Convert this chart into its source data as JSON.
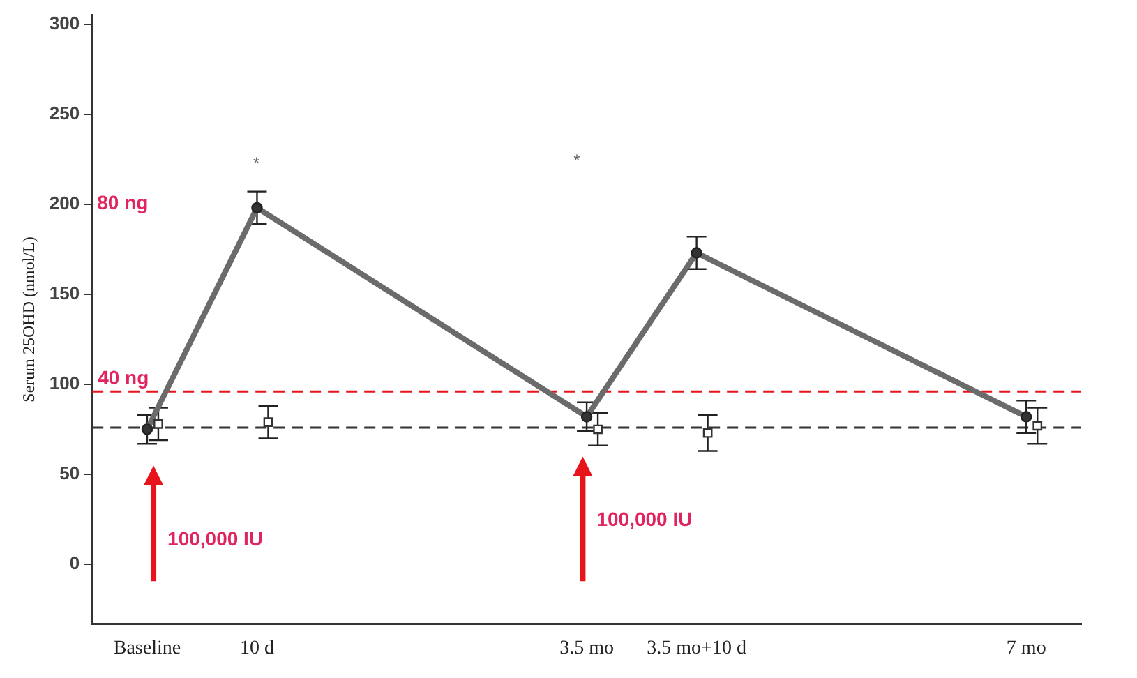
{
  "chart_data": {
    "type": "line",
    "ylabel": "Serum 25OHD (nmol/L)",
    "categories": [
      "Baseline",
      "10 d",
      null,
      null,
      "3.5 mo",
      "3.5 mo+10 d",
      null,
      null,
      "7 mo"
    ],
    "series": [
      {
        "color": "#6b6b6b",
        "marker": "circle",
        "values": [
          75,
          198,
          null,
          null,
          82,
          173,
          null,
          null,
          82
        ],
        "errors": [
          8,
          9,
          null,
          null,
          8,
          9,
          null,
          null,
          9
        ]
      },
      {
        "type": "scatter",
        "color": "#333333",
        "marker": "square",
        "values": [
          78,
          79,
          null,
          null,
          75,
          73,
          null,
          null,
          77
        ],
        "errors": [
          9,
          9,
          null,
          null,
          9,
          10,
          null,
          null,
          10
        ]
      }
    ],
    "ylim": [
      -33,
      305
    ],
    "yticks": [
      0,
      50,
      100,
      150,
      200,
      250,
      300
    ],
    "ref_lines": [
      {
        "axis": "y",
        "value": 76,
        "color": "#333333",
        "line_style": "dashed"
      },
      {
        "axis": "y",
        "value": 96,
        "label": "40 ng",
        "color": "#e8141b",
        "line_style": "dashed"
      }
    ],
    "annotations": [
      "80 ng",
      "*",
      "*",
      "100,000 IU",
      "100,000 IU"
    ],
    "grid": false,
    "legend": false
  }
}
